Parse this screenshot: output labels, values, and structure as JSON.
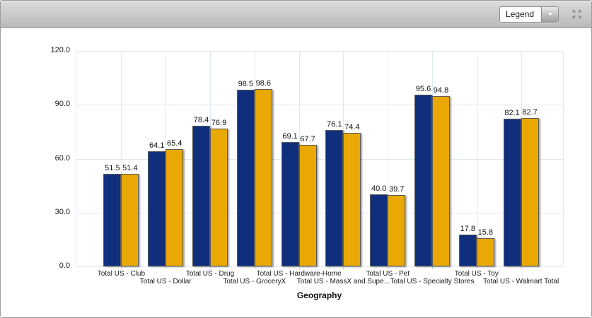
{
  "toolbar": {
    "legend_dropdown": {
      "selected_value": "Legend"
    }
  },
  "chart_data": {
    "type": "bar",
    "title": "",
    "xlabel": "Geography",
    "ylabel": "",
    "ylim": [
      0,
      120
    ],
    "yticks": [
      0,
      30,
      60,
      90,
      120
    ],
    "ytick_labels": [
      "0.0",
      "30.0",
      "60.0",
      "90.0",
      "120.0"
    ],
    "grid": true,
    "legend_position": "collapsed-in-toolbar-dropdown",
    "bar_value_labels_shown": true,
    "categories": [
      "Total US - Club",
      "Total US - Dollar",
      "Total US - Drug",
      "Total US - GroceryX",
      "Total US - Hardware-Home",
      "Total US - MassX and Supe...",
      "Total US - Pet",
      "Total US - Specialty Stores",
      "Total US - Toy",
      "Total US - Walmart Total"
    ],
    "series": [
      {
        "color": "#0f2f7c",
        "values": [
          51.5,
          64.1,
          78.4,
          98.5,
          69.1,
          76.1,
          40.0,
          95.6,
          17.8,
          82.1
        ]
      },
      {
        "color": "#e9a803",
        "values": [
          51.4,
          65.4,
          76.9,
          98.6,
          67.7,
          74.4,
          39.7,
          94.8,
          15.8,
          82.7
        ]
      }
    ],
    "colors": {
      "series1": "#0f2f7c",
      "series2": "#e9a803",
      "gridline": "#dfe9f3"
    }
  }
}
